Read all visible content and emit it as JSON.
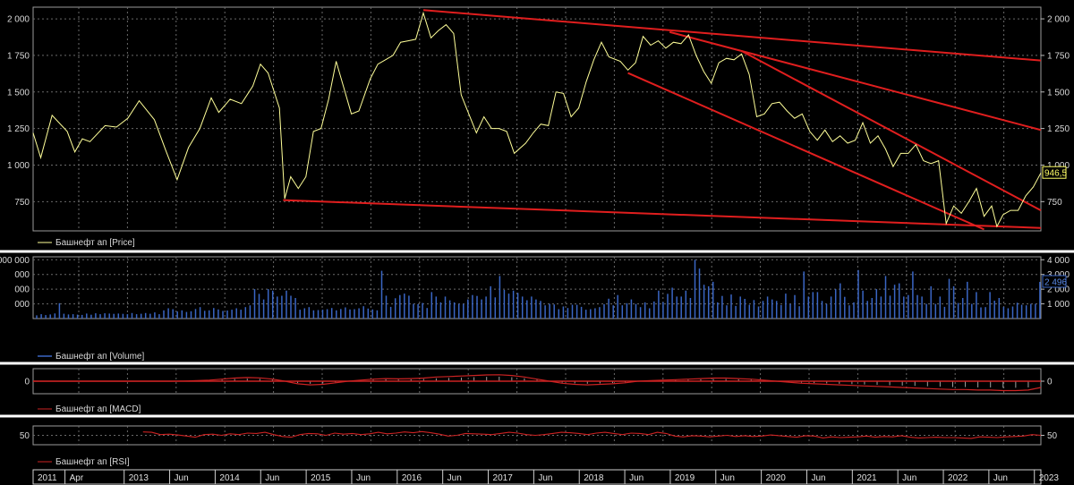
{
  "chart_data": [
    {
      "panel": "price",
      "type": "line",
      "legend": "Башнефт ап [Price]",
      "ylim": [
        550,
        2080
      ],
      "yticks": [
        750,
        1000,
        1250,
        1500,
        1750,
        2000
      ],
      "ytick_labels": [
        "750",
        "1 000",
        "1 250",
        "1 500",
        "1 750",
        "2 000"
      ],
      "last_value_label": "946,5",
      "color": "#ffff99",
      "series": [
        {
          "t": 0,
          "v": 1220
        },
        {
          "t": 0.1,
          "v": 1050
        },
        {
          "t": 0.25,
          "v": 1340
        },
        {
          "t": 0.45,
          "v": 1230
        },
        {
          "t": 0.55,
          "v": 1090
        },
        {
          "t": 0.65,
          "v": 1180
        },
        {
          "t": 0.75,
          "v": 1160
        },
        {
          "t": 0.95,
          "v": 1270
        },
        {
          "t": 1.1,
          "v": 1260
        },
        {
          "t": 1.25,
          "v": 1320
        },
        {
          "t": 1.4,
          "v": 1440
        },
        {
          "t": 1.6,
          "v": 1310
        },
        {
          "t": 1.75,
          "v": 1100
        },
        {
          "t": 1.9,
          "v": 900
        },
        {
          "t": 2.05,
          "v": 1120
        },
        {
          "t": 2.2,
          "v": 1250
        },
        {
          "t": 2.35,
          "v": 1460
        },
        {
          "t": 2.45,
          "v": 1360
        },
        {
          "t": 2.6,
          "v": 1450
        },
        {
          "t": 2.75,
          "v": 1420
        },
        {
          "t": 2.9,
          "v": 1540
        },
        {
          "t": 3.0,
          "v": 1690
        },
        {
          "t": 3.1,
          "v": 1630
        },
        {
          "t": 3.25,
          "v": 1390
        },
        {
          "t": 3.32,
          "v": 770
        },
        {
          "t": 3.4,
          "v": 920
        },
        {
          "t": 3.5,
          "v": 840
        },
        {
          "t": 3.6,
          "v": 920
        },
        {
          "t": 3.7,
          "v": 1230
        },
        {
          "t": 3.8,
          "v": 1250
        },
        {
          "t": 3.9,
          "v": 1450
        },
        {
          "t": 4.0,
          "v": 1710
        },
        {
          "t": 4.1,
          "v": 1530
        },
        {
          "t": 4.2,
          "v": 1350
        },
        {
          "t": 4.3,
          "v": 1370
        },
        {
          "t": 4.45,
          "v": 1590
        },
        {
          "t": 4.55,
          "v": 1690
        },
        {
          "t": 4.65,
          "v": 1720
        },
        {
          "t": 4.75,
          "v": 1750
        },
        {
          "t": 4.85,
          "v": 1840
        },
        {
          "t": 4.95,
          "v": 1850
        },
        {
          "t": 5.05,
          "v": 1860
        },
        {
          "t": 5.15,
          "v": 2040
        },
        {
          "t": 5.25,
          "v": 1870
        },
        {
          "t": 5.35,
          "v": 1920
        },
        {
          "t": 5.45,
          "v": 1960
        },
        {
          "t": 5.55,
          "v": 1900
        },
        {
          "t": 5.65,
          "v": 1480
        },
        {
          "t": 5.75,
          "v": 1350
        },
        {
          "t": 5.85,
          "v": 1220
        },
        {
          "t": 5.95,
          "v": 1330
        },
        {
          "t": 6.05,
          "v": 1250
        },
        {
          "t": 6.15,
          "v": 1250
        },
        {
          "t": 6.25,
          "v": 1230
        },
        {
          "t": 6.35,
          "v": 1080
        },
        {
          "t": 6.5,
          "v": 1150
        },
        {
          "t": 6.6,
          "v": 1220
        },
        {
          "t": 6.7,
          "v": 1280
        },
        {
          "t": 6.8,
          "v": 1270
        },
        {
          "t": 6.9,
          "v": 1500
        },
        {
          "t": 7.0,
          "v": 1490
        },
        {
          "t": 7.1,
          "v": 1330
        },
        {
          "t": 7.2,
          "v": 1390
        },
        {
          "t": 7.3,
          "v": 1570
        },
        {
          "t": 7.4,
          "v": 1720
        },
        {
          "t": 7.5,
          "v": 1840
        },
        {
          "t": 7.6,
          "v": 1740
        },
        {
          "t": 7.75,
          "v": 1710
        },
        {
          "t": 7.85,
          "v": 1650
        },
        {
          "t": 7.95,
          "v": 1700
        },
        {
          "t": 8.05,
          "v": 1880
        },
        {
          "t": 8.15,
          "v": 1820
        },
        {
          "t": 8.25,
          "v": 1850
        },
        {
          "t": 8.35,
          "v": 1800
        },
        {
          "t": 8.45,
          "v": 1840
        },
        {
          "t": 8.55,
          "v": 1830
        },
        {
          "t": 8.65,
          "v": 1890
        },
        {
          "t": 8.75,
          "v": 1750
        },
        {
          "t": 8.85,
          "v": 1640
        },
        {
          "t": 8.95,
          "v": 1560
        },
        {
          "t": 9.05,
          "v": 1700
        },
        {
          "t": 9.15,
          "v": 1730
        },
        {
          "t": 9.25,
          "v": 1720
        },
        {
          "t": 9.35,
          "v": 1760
        },
        {
          "t": 9.45,
          "v": 1620
        },
        {
          "t": 9.55,
          "v": 1330
        },
        {
          "t": 9.65,
          "v": 1350
        },
        {
          "t": 9.75,
          "v": 1420
        },
        {
          "t": 9.85,
          "v": 1430
        },
        {
          "t": 9.95,
          "v": 1370
        },
        {
          "t": 10.05,
          "v": 1320
        },
        {
          "t": 10.15,
          "v": 1350
        },
        {
          "t": 10.25,
          "v": 1230
        },
        {
          "t": 10.35,
          "v": 1170
        },
        {
          "t": 10.45,
          "v": 1240
        },
        {
          "t": 10.55,
          "v": 1160
        },
        {
          "t": 10.65,
          "v": 1200
        },
        {
          "t": 10.75,
          "v": 1150
        },
        {
          "t": 10.85,
          "v": 1170
        },
        {
          "t": 10.95,
          "v": 1290
        },
        {
          "t": 11.05,
          "v": 1150
        },
        {
          "t": 11.15,
          "v": 1200
        },
        {
          "t": 11.25,
          "v": 1110
        },
        {
          "t": 11.35,
          "v": 990
        },
        {
          "t": 11.45,
          "v": 1080
        },
        {
          "t": 11.55,
          "v": 1080
        },
        {
          "t": 11.65,
          "v": 1140
        },
        {
          "t": 11.75,
          "v": 1030
        },
        {
          "t": 11.85,
          "v": 1010
        },
        {
          "t": 11.95,
          "v": 1030
        },
        {
          "t": 12.05,
          "v": 600
        },
        {
          "t": 12.15,
          "v": 720
        },
        {
          "t": 12.25,
          "v": 670
        },
        {
          "t": 12.35,
          "v": 750
        },
        {
          "t": 12.45,
          "v": 840
        },
        {
          "t": 12.55,
          "v": 650
        },
        {
          "t": 12.65,
          "v": 720
        },
        {
          "t": 12.72,
          "v": 580
        },
        {
          "t": 12.8,
          "v": 660
        },
        {
          "t": 12.9,
          "v": 690
        },
        {
          "t": 13.0,
          "v": 690
        },
        {
          "t": 13.1,
          "v": 790
        },
        {
          "t": 13.2,
          "v": 850
        },
        {
          "t": 13.3,
          "v": 946.5
        }
      ],
      "trendlines": [
        {
          "t1": 5.15,
          "v1": 2060,
          "t2": 13.3,
          "v2": 1715
        },
        {
          "t1": 8.4,
          "v1": 1910,
          "t2": 13.3,
          "v2": 1240
        },
        {
          "t1": 9.35,
          "v1": 1780,
          "t2": 13.3,
          "v2": 690
        },
        {
          "t1": 7.85,
          "v1": 1630,
          "t2": 12.55,
          "v2": 560
        },
        {
          "t1": 3.3,
          "v1": 760,
          "t2": 13.3,
          "v2": 570
        }
      ]
    },
    {
      "panel": "volume",
      "type": "bar",
      "legend": "Башнефт ап [Volume]",
      "ylim": [
        0,
        4200
      ],
      "yticks": [
        1000,
        2000,
        3000,
        4000
      ],
      "ytick_labels": [
        "1 000",
        "2 000",
        "3 000",
        "4 000"
      ],
      "left_tick_labels": [
        "000",
        "000",
        "000",
        "000 000"
      ],
      "last_value_label": "2 496",
      "color": "#3a66c4",
      "values": [
        220,
        300,
        240,
        280,
        350,
        1050,
        330,
        280,
        300,
        270,
        250,
        340,
        260,
        360,
        300,
        360,
        340,
        320,
        340,
        320,
        300,
        380,
        300,
        330,
        380,
        330,
        420,
        300,
        560,
        700,
        640,
        480,
        560,
        450,
        500,
        650,
        780,
        530,
        560,
        720,
        620,
        520,
        550,
        600,
        700,
        600,
        780,
        900,
        2000,
        1680,
        1300,
        2000,
        1900,
        1500,
        1550,
        1900,
        1550,
        1400,
        600,
        700,
        780,
        560,
        580,
        600,
        640,
        720,
        560,
        650,
        760,
        620,
        640,
        700,
        840,
        680,
        620,
        560,
        3250,
        1560,
        800,
        1380,
        1600,
        1700,
        1560,
        1000,
        980,
        1060,
        720,
        1800,
        1500,
        1100,
        1500,
        1240,
        1100,
        1000,
        1000,
        1300,
        1600,
        1540,
        1300,
        1500,
        2200,
        1440,
        2900,
        1950,
        1700,
        1900,
        1750,
        1500,
        1250,
        1500,
        1300,
        1200,
        900,
        1000,
        960,
        640,
        820,
        720,
        940,
        940,
        800,
        600,
        640,
        700,
        780,
        980,
        1350,
        900,
        1600,
        900,
        1050,
        1300,
        1000,
        780,
        1100,
        700,
        1160,
        1900,
        1120,
        1680,
        2100,
        1500,
        1500,
        1900,
        1400,
        4000,
        3400,
        2300,
        2200,
        2500,
        1100,
        1540,
        900,
        1640,
        860,
        1500,
        1340,
        940,
        1260,
        820,
        1200,
        1500,
        1300,
        1200,
        920,
        1700,
        1000,
        1600,
        840,
        3200,
        1500,
        1800,
        1800,
        1200,
        1000,
        1500,
        2000,
        2400,
        1480,
        900,
        1100,
        3300,
        1900,
        1200,
        1400,
        2000,
        1500,
        2900,
        1560,
        2300,
        2400,
        1500,
        1600,
        3200,
        1600,
        1500,
        1000,
        2200,
        1000,
        1500,
        800,
        2700,
        2200,
        1060,
        1400,
        2500,
        1000,
        1800,
        760,
        780,
        1800,
        1220,
        1400,
        800,
        700,
        820,
        1080,
        940,
        900,
        1000,
        1000,
        2496
      ]
    },
    {
      "panel": "macd",
      "type": "line",
      "legend": "Башнефт ап [MACD]",
      "ylim": [
        -1.2,
        1.2
      ],
      "yticks": [
        0
      ],
      "ytick_labels": [
        "0"
      ],
      "color": "#cc2222",
      "hist_color": "#a0a0a0",
      "values": [
        0,
        0,
        0,
        0,
        0,
        0,
        0,
        0,
        0,
        0,
        0,
        0,
        0.02,
        0.05,
        0.1,
        0.2,
        0.3,
        0.35,
        0.32,
        0.2,
        0,
        -0.25,
        -0.35,
        -0.3,
        -0.15,
        0,
        0.1,
        0.2,
        0.25,
        0.22,
        0.25,
        0.3,
        0.4,
        0.45,
        0.5,
        0.55,
        0.6,
        0.62,
        0.55,
        0.4,
        0.2,
        0,
        -0.2,
        -0.3,
        -0.35,
        -0.3,
        -0.25,
        -0.15,
        0,
        0.05,
        0.1,
        0.15,
        0.2,
        0.25,
        0.3,
        0.3,
        0.25,
        0.2,
        0.1,
        0,
        -0.1,
        -0.2,
        -0.25,
        -0.3,
        -0.35,
        -0.4,
        -0.45,
        -0.5,
        -0.55,
        -0.6,
        -0.65,
        -0.7,
        -0.75,
        -0.8,
        -0.8,
        -0.85,
        -0.85,
        -0.9,
        -0.9,
        -0.85,
        -0.6
      ]
    },
    {
      "panel": "rsi",
      "type": "line",
      "legend": "Башнефт ап [RSI]",
      "ylim": [
        25,
        75
      ],
      "yticks": [
        50
      ],
      "ytick_labels": [
        "50"
      ],
      "color": "#cc2222",
      "start_t": 1.45,
      "values": [
        59,
        58,
        52,
        53,
        51,
        48,
        45,
        52,
        53,
        50,
        54,
        52,
        56,
        55,
        58,
        52,
        47,
        45,
        52,
        55,
        54,
        50,
        56,
        53,
        55,
        52,
        54,
        58,
        54,
        56,
        59,
        57,
        60,
        57,
        53,
        48,
        50,
        55,
        54,
        53,
        52,
        55,
        58,
        56,
        52,
        50,
        52,
        55,
        58,
        57,
        55,
        52,
        56,
        58,
        55,
        52,
        56,
        55,
        52,
        58,
        55,
        48,
        46,
        49,
        48,
        46,
        48,
        50,
        47,
        49,
        47,
        48,
        51,
        49,
        47,
        45,
        49,
        48,
        43,
        46,
        44,
        45,
        46,
        48,
        45,
        47,
        46,
        49,
        45,
        43,
        44,
        45,
        44,
        44,
        43,
        42,
        46,
        45,
        44,
        46,
        47,
        48,
        52,
        50
      ]
    }
  ],
  "x_axis": {
    "labels": [
      {
        "text": "2011",
        "t": 0
      },
      {
        "text": "Apr",
        "t": 0.35
      },
      {
        "text": "2013",
        "t": 1.0
      },
      {
        "text": "Jun",
        "t": 1.5
      },
      {
        "text": "2014",
        "t": 2.0
      },
      {
        "text": "Jun",
        "t": 2.5
      },
      {
        "text": "2015",
        "t": 3.0
      },
      {
        "text": "Jun",
        "t": 3.5
      },
      {
        "text": "2016",
        "t": 4.0
      },
      {
        "text": "Jun",
        "t": 4.5
      },
      {
        "text": "2017",
        "t": 5.0
      },
      {
        "text": "Jun",
        "t": 5.5
      },
      {
        "text": "2018",
        "t": 6.0
      },
      {
        "text": "Jun",
        "t": 6.5
      },
      {
        "text": "2019",
        "t": 7.0
      },
      {
        "text": "Jun",
        "t": 7.5
      },
      {
        "text": "2020",
        "t": 8.0
      },
      {
        "text": "Jun",
        "t": 8.5
      },
      {
        "text": "2021",
        "t": 9.0
      },
      {
        "text": "Jun",
        "t": 9.5
      },
      {
        "text": "2022",
        "t": 10.0
      },
      {
        "text": "Jun",
        "t": 10.5
      },
      {
        "text": "2023",
        "t": 11.0
      }
    ]
  }
}
